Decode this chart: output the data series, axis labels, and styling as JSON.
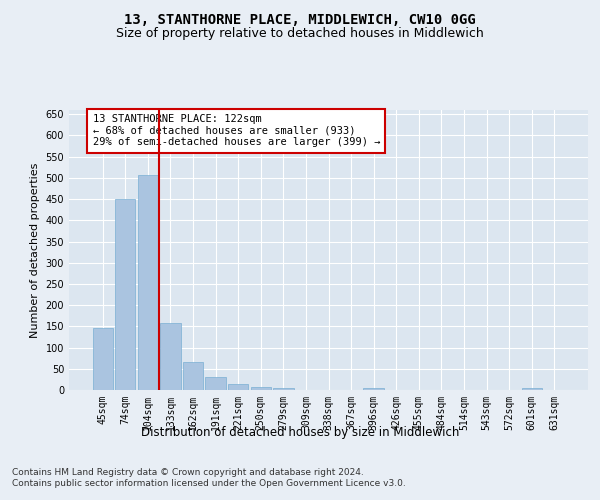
{
  "title": "13, STANTHORNE PLACE, MIDDLEWICH, CW10 0GG",
  "subtitle": "Size of property relative to detached houses in Middlewich",
  "xlabel": "Distribution of detached houses by size in Middlewich",
  "ylabel": "Number of detached properties",
  "categories": [
    "45sqm",
    "74sqm",
    "104sqm",
    "133sqm",
    "162sqm",
    "191sqm",
    "221sqm",
    "250sqm",
    "279sqm",
    "309sqm",
    "338sqm",
    "367sqm",
    "396sqm",
    "426sqm",
    "455sqm",
    "484sqm",
    "514sqm",
    "543sqm",
    "572sqm",
    "601sqm",
    "631sqm"
  ],
  "values": [
    147,
    450,
    507,
    158,
    65,
    30,
    13,
    8,
    5,
    0,
    0,
    0,
    5,
    0,
    0,
    0,
    0,
    0,
    0,
    5,
    0
  ],
  "bar_color": "#aac4e0",
  "bar_edge_color": "#7aafd4",
  "vline_x": 2.5,
  "vline_color": "#cc0000",
  "annotation_text": "13 STANTHORNE PLACE: 122sqm\n← 68% of detached houses are smaller (933)\n29% of semi-detached houses are larger (399) →",
  "annotation_box_color": "#ffffff",
  "annotation_box_edge_color": "#cc0000",
  "ylim": [
    0,
    660
  ],
  "yticks": [
    0,
    50,
    100,
    150,
    200,
    250,
    300,
    350,
    400,
    450,
    500,
    550,
    600,
    650
  ],
  "background_color": "#e8eef5",
  "plot_bg_color": "#dce6f0",
  "grid_color": "#ffffff",
  "footnote": "Contains HM Land Registry data © Crown copyright and database right 2024.\nContains public sector information licensed under the Open Government Licence v3.0.",
  "title_fontsize": 10,
  "subtitle_fontsize": 9,
  "xlabel_fontsize": 8.5,
  "ylabel_fontsize": 8,
  "tick_fontsize": 7,
  "annotation_fontsize": 7.5,
  "footnote_fontsize": 6.5
}
